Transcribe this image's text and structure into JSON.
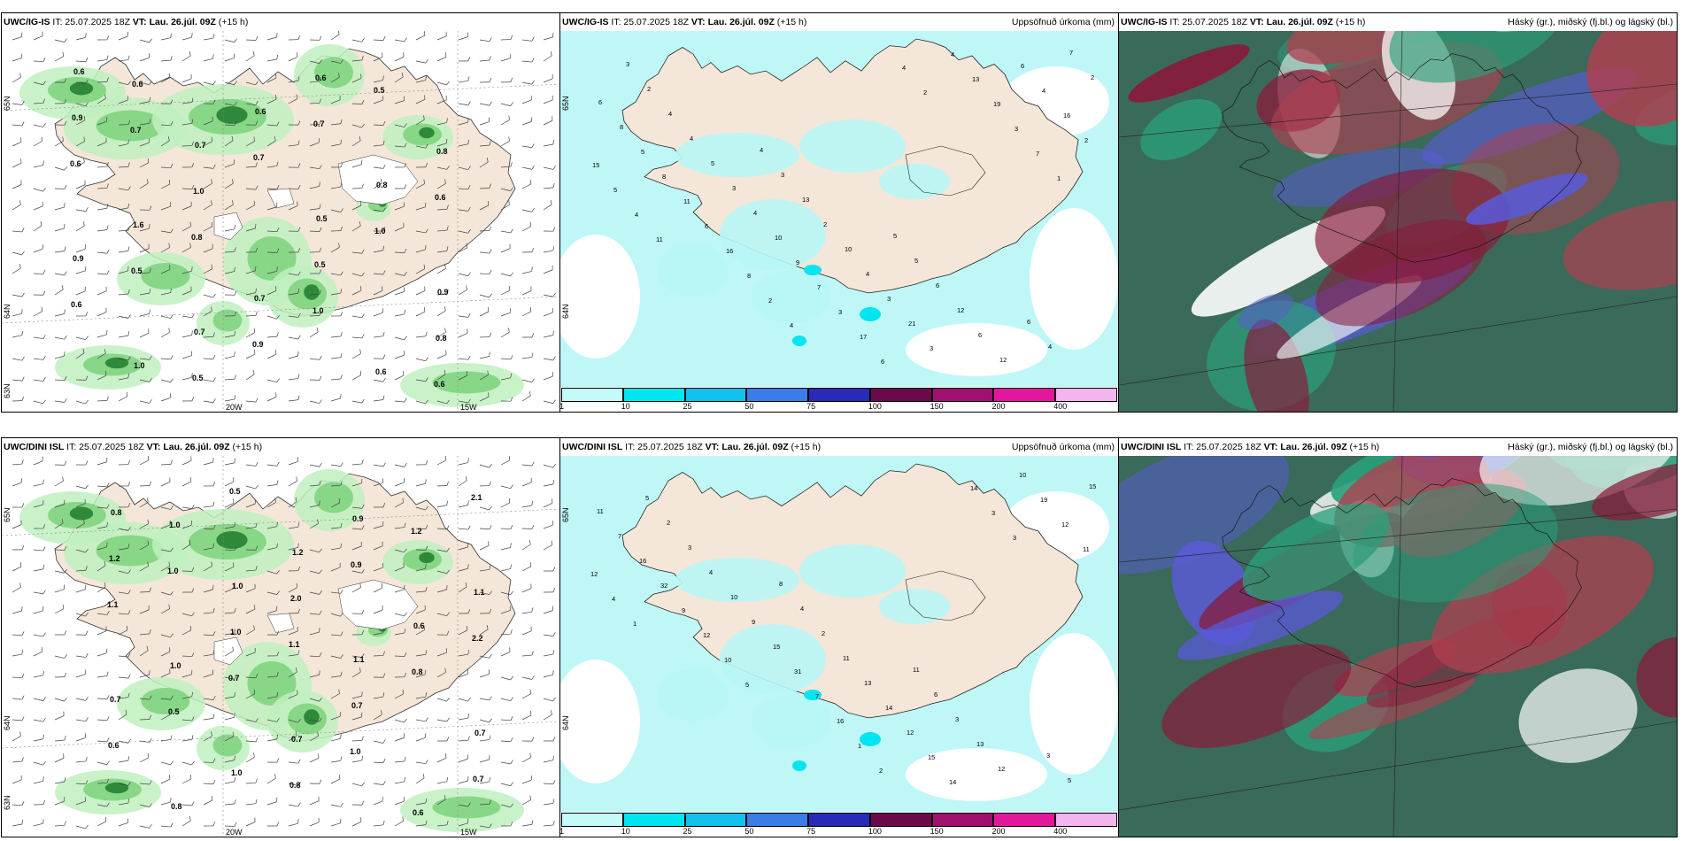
{
  "rows": [
    {
      "model": "UWC/IG-IS",
      "it": "IT: 25.07.2025 18Z",
      "vt_label": "VT:",
      "vt": "Lau. 26.júl. 09Z",
      "lead": "(+15 h)",
      "lat_labels": [
        "65N",
        "64N",
        "63N"
      ],
      "lon_labels": [
        "20W",
        "15W"
      ],
      "precip_labels": [
        "0.6",
        "0.7",
        "0.5",
        "0.9",
        "1.0",
        "0.6",
        "0.8",
        "0.9",
        "0.7",
        "0.6",
        "0.8",
        "1.6",
        "0.7",
        "0.6",
        "0.9",
        "1.0",
        "0.5",
        "0.8",
        "0.6",
        "0.7",
        "1.0",
        "0.6",
        "0.5",
        "0.7",
        "0.6",
        "0.5",
        "0.9",
        "0.5",
        "0.6",
        "0.8",
        "1.0",
        "0.6",
        "0.7"
      ],
      "accum_values": [
        "3",
        "4",
        "5",
        "6",
        "2",
        "3",
        "5",
        "4",
        "4",
        "13",
        "6",
        "7",
        "4",
        "2",
        "12",
        "2",
        "5",
        "10",
        "6",
        "6",
        "3",
        "4",
        "12",
        "8",
        "4",
        "3",
        "6",
        "5",
        "10",
        "21",
        "4",
        "8",
        "9",
        "3",
        "16",
        "11",
        "7",
        "4",
        "2",
        "6",
        "3",
        "13",
        "15",
        "16",
        "17",
        "19",
        "5",
        "8",
        "6",
        "3",
        "4",
        "2",
        "4",
        "7",
        "11",
        "4",
        "2",
        "1"
      ]
    },
    {
      "model": "UWC/DINI ISL",
      "it": "IT: 25.07.2025 18Z",
      "vt_label": "VT:",
      "vt": "Lau. 26.júl. 09Z",
      "lead": "(+15 h)",
      "lat_labels": [
        "65N",
        "64N",
        "63N"
      ],
      "lon_labels": [
        "20W",
        "15W"
      ],
      "precip_labels": [
        "0.8",
        "1.0",
        "1.1",
        "0.7",
        "0.8",
        "1.2",
        "0.6",
        "0.7",
        "1.0",
        "0.9",
        "1.1",
        "1.0",
        "0.7",
        "0.6",
        "1.2",
        "1.0",
        "0.7",
        "0.7",
        "1.0",
        "2.0",
        "0.8",
        "0.6",
        "0.5",
        "0.9",
        "2.2",
        "0.5",
        "0.8",
        "1.2",
        "1.1",
        "0.7",
        "1.0",
        "2.1",
        "1.0",
        "1.1"
      ],
      "accum_values": [
        "5",
        "8",
        "11",
        "3",
        "2",
        "4",
        "6",
        "5",
        "3",
        "2",
        "3",
        "15",
        "4",
        "11",
        "13",
        "11",
        "10",
        "13",
        "12",
        "7",
        "9",
        "14",
        "10",
        "16",
        "15",
        "12",
        "19",
        "32",
        "31",
        "15",
        "12",
        "9",
        "7",
        "14",
        "11",
        "12",
        "16",
        "14",
        "12",
        "10",
        "1",
        "3",
        "4",
        "5",
        "2",
        "3",
        "1"
      ]
    }
  ],
  "precip_title": "Uppsöfnuð úrkoma (mm)",
  "cloud_title": "Háský (gr.), miðský (fj.bl.) og lágský (bl.)",
  "colorbar": {
    "labels": [
      "1",
      "10",
      "25",
      "50",
      "75",
      "100",
      "150",
      "200",
      "400"
    ],
    "colors": [
      "#c4fafa",
      "#00e6f0",
      "#12c0ec",
      "#3a7ce8",
      "#2a2ab8",
      "#6a0a4a",
      "#a0106e",
      "#e2189c",
      "#f4b4ee"
    ]
  },
  "colors": {
    "land": "#f4e6d8",
    "sea": "#ffffff",
    "precip_light": "#bff0bf",
    "precip_mid": "#7cd27c",
    "precip_dark": "#2e8a3a",
    "accum_ice": "#b8f6f6",
    "cloud_high": "#8a1a3a",
    "cloud_mid": "#5a5ad8",
    "cloud_low": "#2aa07a"
  }
}
